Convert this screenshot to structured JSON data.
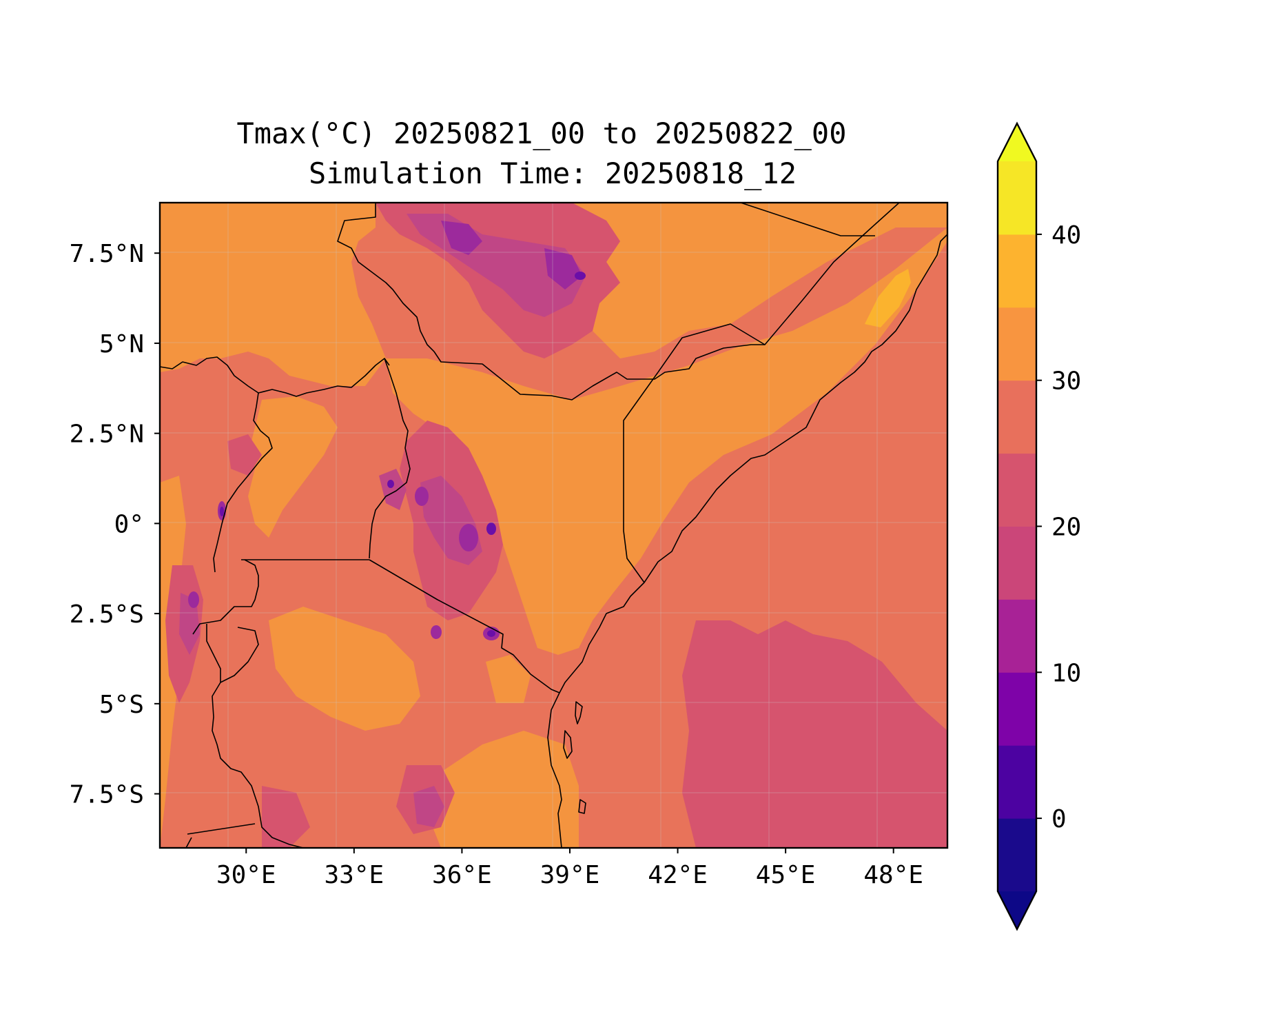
{
  "title": {
    "line1": "Tmax(°C) 20250821_00 to 20250822_00",
    "line2": "Simulation Time: 20250818_12"
  },
  "map": {
    "region": "East Africa",
    "lon_range": [
      27.6,
      49.5
    ],
    "lat_range": [
      -9.0,
      8.9
    ],
    "x_ticks": [
      {
        "value": 30,
        "label": "30°E"
      },
      {
        "value": 33,
        "label": "33°E"
      },
      {
        "value": 36,
        "label": "36°E"
      },
      {
        "value": 39,
        "label": "39°E"
      },
      {
        "value": 42,
        "label": "42°E"
      },
      {
        "value": 45,
        "label": "45°E"
      },
      {
        "value": 48,
        "label": "48°E"
      }
    ],
    "y_ticks": [
      {
        "value": 7.5,
        "label": "7.5°N"
      },
      {
        "value": 5,
        "label": "5°N"
      },
      {
        "value": 2.5,
        "label": "2.5°N"
      },
      {
        "value": 0,
        "label": "0°"
      },
      {
        "value": -2.5,
        "label": "2.5°S"
      },
      {
        "value": -5,
        "label": "5°S"
      },
      {
        "value": -7.5,
        "label": "7.5°S"
      }
    ],
    "grid": true
  },
  "colorbar": {
    "levels": [
      -5,
      0,
      5,
      10,
      15,
      20,
      25,
      30,
      35,
      40,
      45
    ],
    "colors": [
      "#1a0a8c",
      "#4c02a1",
      "#7e03a8",
      "#a82296",
      "#cb4679",
      "#d6546e",
      "#e8705c",
      "#f89540",
      "#fdb32f",
      "#f6e626"
    ],
    "under_color": "#0d0887",
    "over_color": "#f0f921",
    "extend": "both",
    "ticks": [
      {
        "value": 0,
        "label": "0"
      },
      {
        "value": 10,
        "label": "10"
      },
      {
        "value": 20,
        "label": "20"
      },
      {
        "value": 30,
        "label": "30"
      },
      {
        "value": 40,
        "label": "40"
      }
    ]
  },
  "field_colors": {
    "hot_land": "#f4943f",
    "warm": "#e8735a",
    "mild": "#d6546e",
    "cool": "#c04686",
    "cold": "#9c2a9c",
    "coldest": "#6a0fa8",
    "hottest": "#fbb32e"
  }
}
